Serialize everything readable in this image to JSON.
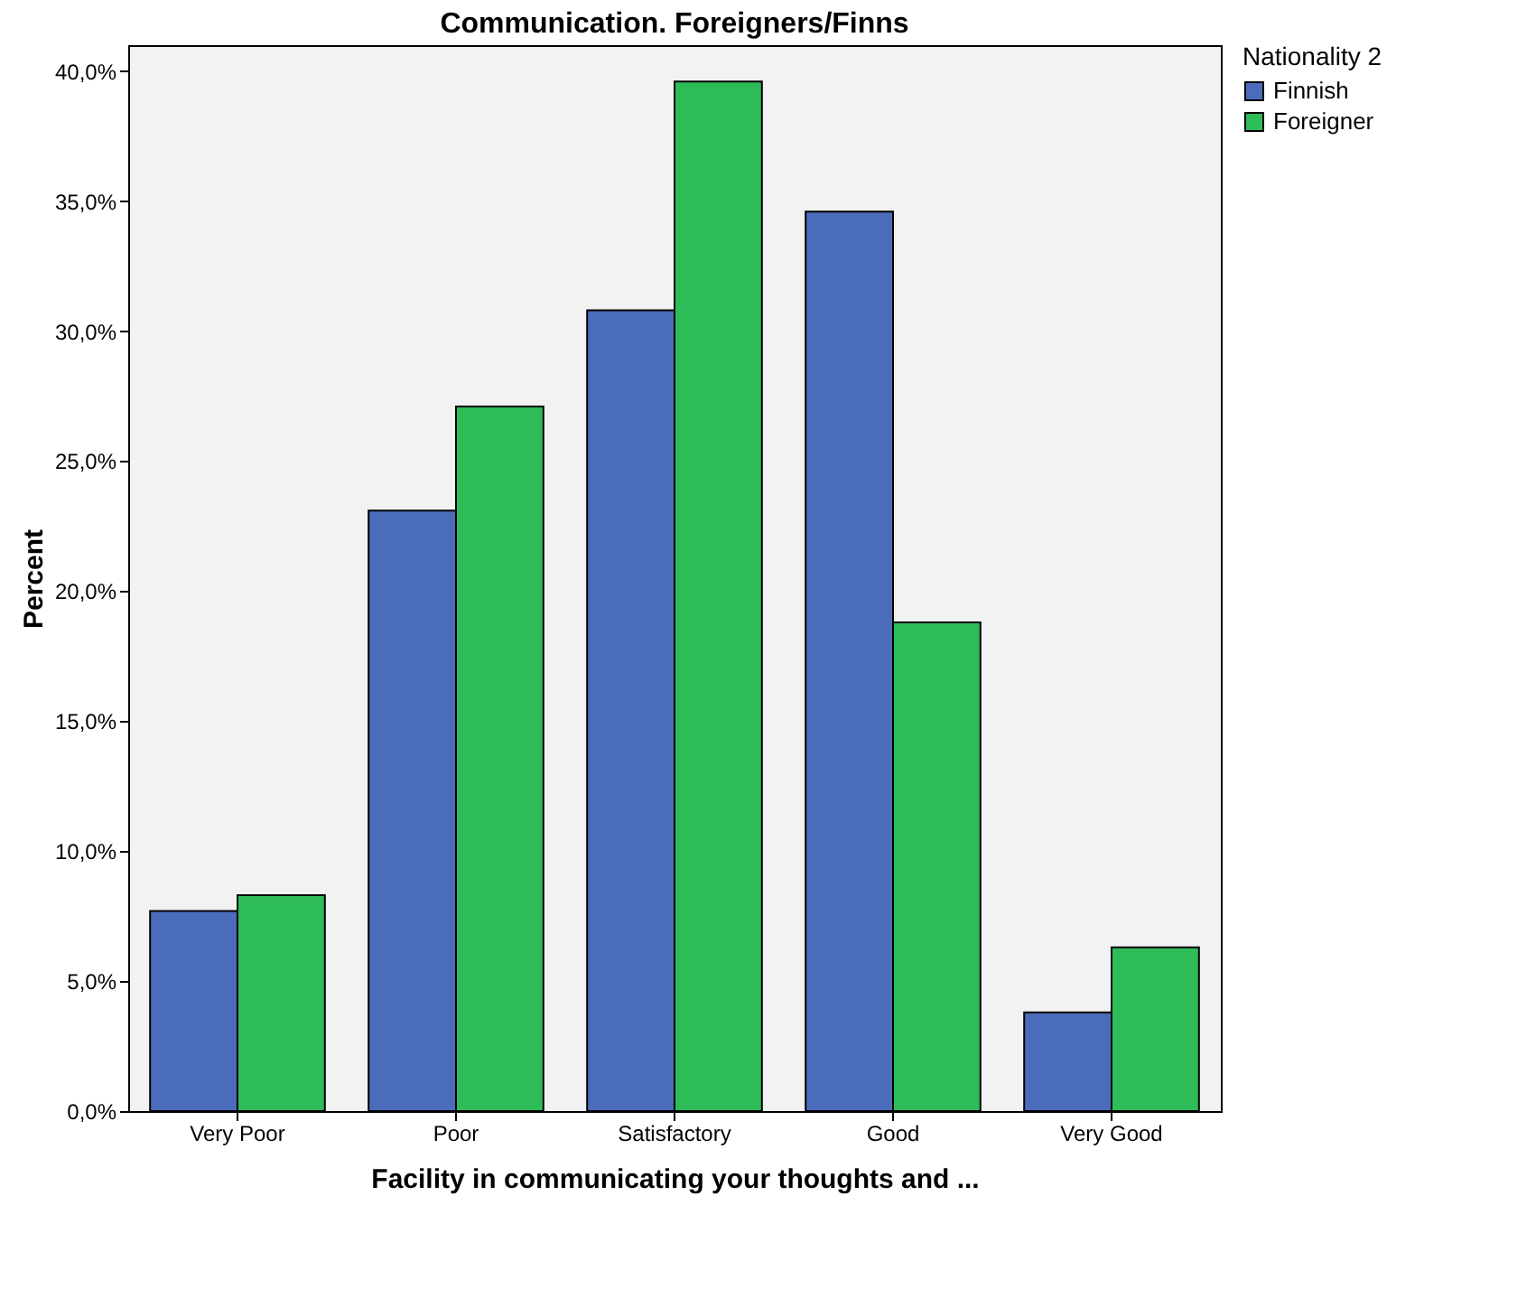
{
  "chart_data": {
    "type": "bar",
    "title": "Communication. Foreigners/Finns",
    "xlabel": "Facility in communicating your thoughts and ...",
    "ylabel": "Percent",
    "legend_title": "Nationality 2",
    "categories": [
      "Very Poor",
      "Poor",
      "Satisfactory",
      "Good",
      "Very Good"
    ],
    "series": [
      {
        "name": "Finnish",
        "color": "#4b6cba",
        "values": [
          7.7,
          23.1,
          30.8,
          34.6,
          3.8
        ]
      },
      {
        "name": "Foreigner",
        "color": "#2ebc59",
        "values": [
          8.3,
          27.1,
          39.6,
          18.8,
          6.3
        ]
      }
    ],
    "ylim": [
      0,
      41
    ],
    "yticks": [
      {
        "value": 0,
        "label": "0,0%"
      },
      {
        "value": 5,
        "label": "5,0%"
      },
      {
        "value": 10,
        "label": "10,0%"
      },
      {
        "value": 15,
        "label": "15,0%"
      },
      {
        "value": 20,
        "label": "20,0%"
      },
      {
        "value": 25,
        "label": "25,0%"
      },
      {
        "value": 30,
        "label": "30,0%"
      },
      {
        "value": 35,
        "label": "35,0%"
      },
      {
        "value": 40,
        "label": "40,0%"
      }
    ],
    "legend": "top right",
    "grid": false
  }
}
